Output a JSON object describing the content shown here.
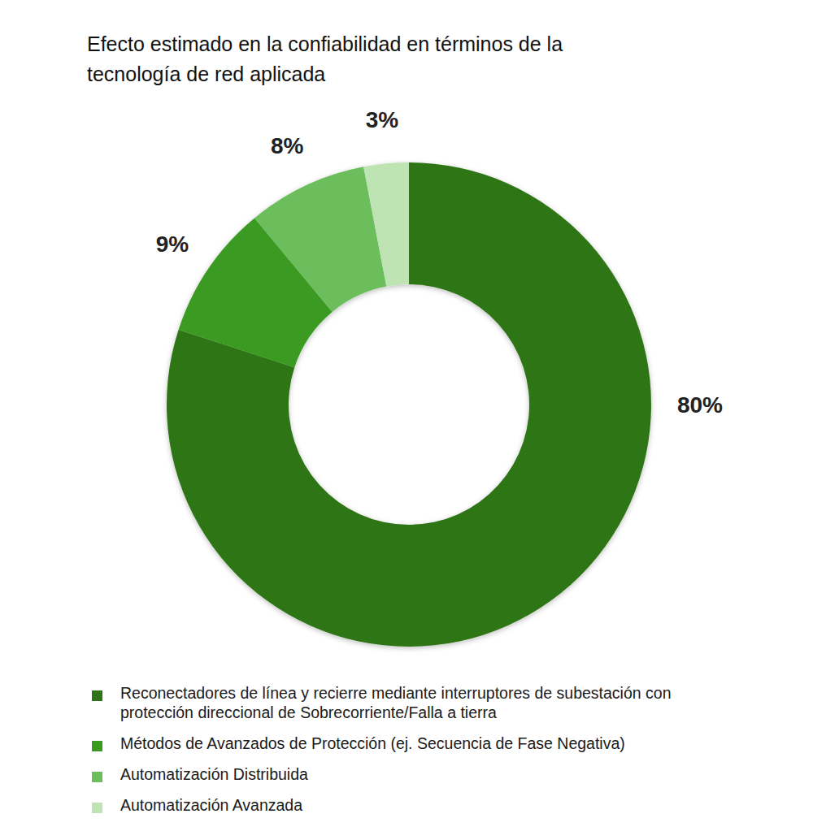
{
  "chart_data": {
    "type": "donut",
    "title": "Efecto estimado en la confiabilidad en términos de la tecnología de red aplicada",
    "categories": [
      "Reconectadores de línea y recierre mediante interruptores de subestación con protección direccional de Sobrecorriente/Falla a tierra",
      "Métodos de Avanzados de Protección (ej. Secuencia de Fase Negativa)",
      "Automatización Distribuida",
      "Automatización Avanzada"
    ],
    "values": [
      80,
      9,
      8,
      3
    ],
    "value_labels": [
      "80%",
      "9%",
      "8%",
      "3%"
    ],
    "colors": [
      "#2f7419",
      "#3a9a20",
      "#6cbd5c",
      "#bde4b2"
    ],
    "data_labels": true,
    "legend": "bottom"
  }
}
